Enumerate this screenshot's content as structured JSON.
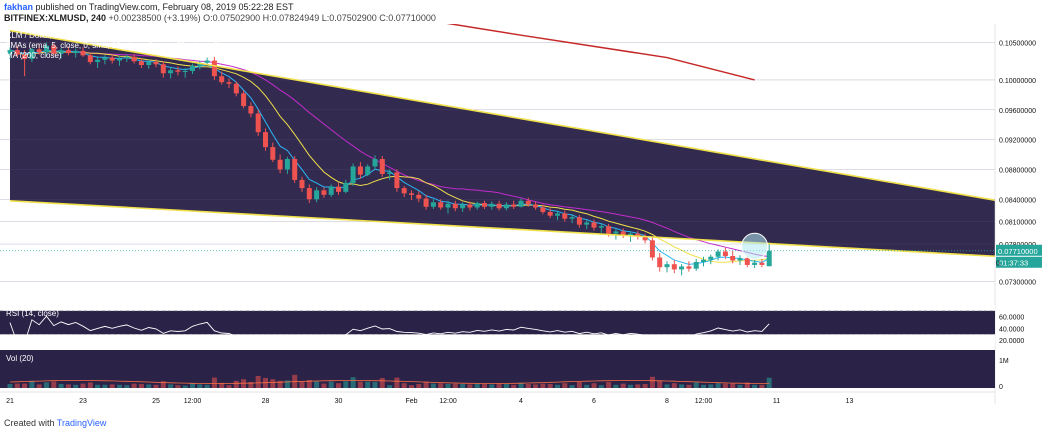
{
  "header": {
    "author": "fakhan",
    "published": "published on TradingView.com, February 08, 2019 05:22:28 EST",
    "symbol": "BITFINEX:XLMUSD, 240",
    "ohlc": "O:0.07502900  H:0.07824949  L:0.07502900  C:0.07710000",
    "change": "+0.00238500 (+3.19%)"
  },
  "overlay": {
    "symbol_line": "XLM / Dollar, 240, BITFINEX",
    "ma_line": "3MAs (ema, 5, close, 0, sma, 10, close, 0, sma, 21, close, 0)",
    "ma200_line": "MA (200, close)"
  },
  "rsi": {
    "label": "RSI (14, close)",
    "ticks": [
      "60.0000",
      "40.0000",
      "20.0000"
    ]
  },
  "vol": {
    "label": "Vol (20)",
    "ticks": [
      "1M",
      "0"
    ]
  },
  "footer": {
    "created": "Created with",
    "brand": "TradingView"
  },
  "colors": {
    "up": "#26a69a",
    "down": "#ef5350",
    "panel_bg": "#2b2248",
    "trendline": "#f0e04a",
    "ma200": "#c62828",
    "ma_sma21": "#c02ccc",
    "ma_sma10": "#f0e04a",
    "ma_ema5": "#29b6f6"
  },
  "chart_data": {
    "type": "candlestick",
    "symbol": "BITFINEX:XLMUSD",
    "timeframe": "240",
    "y_ticks": [
      "0.10500000",
      "0.10000000",
      "0.09600000",
      "0.09200000",
      "0.08800000",
      "0.08400000",
      "0.08100000",
      "0.07800000",
      "0.07300000"
    ],
    "y_tick_values": [
      0.105,
      0.1,
      0.096,
      0.092,
      0.088,
      0.084,
      0.081,
      0.078,
      0.073
    ],
    "ylim": [
      0.0705,
      0.1075
    ],
    "x_ticks": [
      "21",
      "23",
      "25",
      "12:00",
      "28",
      "30",
      "Feb",
      "12:00",
      "4",
      "6",
      "8",
      "12:00",
      "11",
      "13"
    ],
    "last_price_label": "0.07710000",
    "countdown_label": "01:37:33",
    "clipped_tick_label": "0.",
    "last_price": 0.0771,
    "candles": [
      [
        0.1035,
        0.1044,
        0.1028,
        0.104
      ],
      [
        0.104,
        0.1046,
        0.1031,
        0.1034
      ],
      [
        0.1034,
        0.104,
        0.1005,
        0.1028
      ],
      [
        0.1028,
        0.1043,
        0.1024,
        0.1041
      ],
      [
        0.1041,
        0.1048,
        0.1034,
        0.1037
      ],
      [
        0.1037,
        0.105,
        0.1032,
        0.1046
      ],
      [
        0.1046,
        0.1049,
        0.1033,
        0.1035
      ],
      [
        0.1035,
        0.1043,
        0.1029,
        0.104
      ],
      [
        0.104,
        0.1045,
        0.1033,
        0.1036
      ],
      [
        0.1036,
        0.1042,
        0.103,
        0.1039
      ],
      [
        0.1039,
        0.1044,
        0.1031,
        0.1033
      ],
      [
        0.1033,
        0.1036,
        0.1021,
        0.1024
      ],
      [
        0.1024,
        0.103,
        0.1016,
        0.1027
      ],
      [
        0.1027,
        0.1033,
        0.1021,
        0.103
      ],
      [
        0.103,
        0.1034,
        0.1022,
        0.1026
      ],
      [
        0.1026,
        0.1032,
        0.1019,
        0.1029
      ],
      [
        0.1029,
        0.1034,
        0.1024,
        0.1031
      ],
      [
        0.1031,
        0.1035,
        0.1022,
        0.1025
      ],
      [
        0.1025,
        0.1029,
        0.1016,
        0.102
      ],
      [
        0.102,
        0.1027,
        0.1015,
        0.1024
      ],
      [
        0.1024,
        0.1028,
        0.1017,
        0.1021
      ],
      [
        0.1021,
        0.1025,
        0.1003,
        0.1009
      ],
      [
        0.1009,
        0.1017,
        0.1002,
        0.1013
      ],
      [
        0.1013,
        0.1018,
        0.1006,
        0.1011
      ],
      [
        0.1011,
        0.1016,
        0.1003,
        0.1012
      ],
      [
        0.1012,
        0.1022,
        0.1008,
        0.1019
      ],
      [
        0.1019,
        0.1026,
        0.1014,
        0.1023
      ],
      [
        0.1023,
        0.103,
        0.1019,
        0.1026
      ],
      [
        0.1026,
        0.1031,
        0.1,
        0.1005
      ],
      [
        0.1005,
        0.1011,
        0.0994,
        0.0997
      ],
      [
        0.0997,
        0.1002,
        0.0989,
        0.0995
      ],
      [
        0.0995,
        0.0998,
        0.0978,
        0.0982
      ],
      [
        0.0982,
        0.0986,
        0.0962,
        0.0965
      ],
      [
        0.0965,
        0.097,
        0.095,
        0.0955
      ],
      [
        0.0955,
        0.096,
        0.0925,
        0.093
      ],
      [
        0.093,
        0.0935,
        0.0905,
        0.091
      ],
      [
        0.091,
        0.0916,
        0.089,
        0.0893
      ],
      [
        0.0893,
        0.09,
        0.0875,
        0.088
      ],
      [
        0.088,
        0.0897,
        0.0874,
        0.0894
      ],
      [
        0.0894,
        0.0898,
        0.0862,
        0.0866
      ],
      [
        0.0866,
        0.087,
        0.085,
        0.0855
      ],
      [
        0.0855,
        0.086,
        0.0835,
        0.084
      ],
      [
        0.084,
        0.0856,
        0.0836,
        0.0852
      ],
      [
        0.0852,
        0.0856,
        0.0842,
        0.0846
      ],
      [
        0.0846,
        0.086,
        0.0843,
        0.0857
      ],
      [
        0.0857,
        0.0862,
        0.0846,
        0.085
      ],
      [
        0.085,
        0.0866,
        0.0848,
        0.0862
      ],
      [
        0.0862,
        0.0888,
        0.0858,
        0.0884
      ],
      [
        0.0884,
        0.089,
        0.0868,
        0.0873
      ],
      [
        0.0873,
        0.0887,
        0.0871,
        0.0884
      ],
      [
        0.0884,
        0.0899,
        0.088,
        0.0894
      ],
      [
        0.0894,
        0.0898,
        0.087,
        0.0874
      ],
      [
        0.0874,
        0.088,
        0.0866,
        0.0876
      ],
      [
        0.0876,
        0.088,
        0.085,
        0.0855
      ],
      [
        0.0855,
        0.0858,
        0.0843,
        0.0848
      ],
      [
        0.0848,
        0.0852,
        0.0839,
        0.0846
      ],
      [
        0.0846,
        0.0851,
        0.0836,
        0.0841
      ],
      [
        0.0841,
        0.0846,
        0.0826,
        0.083
      ],
      [
        0.083,
        0.084,
        0.0827,
        0.0836
      ],
      [
        0.0836,
        0.084,
        0.0826,
        0.0829
      ],
      [
        0.0829,
        0.0838,
        0.0821,
        0.0834
      ],
      [
        0.0834,
        0.0838,
        0.0824,
        0.0828
      ],
      [
        0.0828,
        0.0836,
        0.0823,
        0.0833
      ],
      [
        0.0833,
        0.0837,
        0.0825,
        0.0829
      ],
      [
        0.0829,
        0.0837,
        0.0826,
        0.0835
      ],
      [
        0.0835,
        0.0838,
        0.0827,
        0.083
      ],
      [
        0.083,
        0.0837,
        0.0826,
        0.0834
      ],
      [
        0.0834,
        0.0838,
        0.0825,
        0.0828
      ],
      [
        0.0828,
        0.0836,
        0.0825,
        0.0833
      ],
      [
        0.0833,
        0.0838,
        0.0827,
        0.083
      ],
      [
        0.083,
        0.0841,
        0.0829,
        0.0838
      ],
      [
        0.0838,
        0.0842,
        0.083,
        0.0833
      ],
      [
        0.0833,
        0.0837,
        0.0826,
        0.0829
      ],
      [
        0.0829,
        0.0833,
        0.082,
        0.0823
      ],
      [
        0.0823,
        0.0828,
        0.0815,
        0.0818
      ],
      [
        0.0818,
        0.0824,
        0.0812,
        0.0821
      ],
      [
        0.0821,
        0.0825,
        0.081,
        0.0814
      ],
      [
        0.0814,
        0.082,
        0.0808,
        0.0816
      ],
      [
        0.0816,
        0.0819,
        0.0802,
        0.0806
      ],
      [
        0.0806,
        0.0812,
        0.08,
        0.0809
      ],
      [
        0.0809,
        0.0813,
        0.0798,
        0.0802
      ],
      [
        0.0802,
        0.0808,
        0.0795,
        0.0804
      ],
      [
        0.0804,
        0.0807,
        0.079,
        0.0794
      ],
      [
        0.0794,
        0.08,
        0.0786,
        0.0797
      ],
      [
        0.0797,
        0.0801,
        0.0788,
        0.0791
      ],
      [
        0.0791,
        0.0797,
        0.0783,
        0.0794
      ],
      [
        0.0794,
        0.0798,
        0.0786,
        0.079
      ],
      [
        0.079,
        0.0794,
        0.0781,
        0.0785
      ],
      [
        0.0785,
        0.079,
        0.0758,
        0.0762
      ],
      [
        0.0762,
        0.0768,
        0.0743,
        0.0749
      ],
      [
        0.0749,
        0.0757,
        0.0742,
        0.0753
      ],
      [
        0.0753,
        0.0759,
        0.0741,
        0.0746
      ],
      [
        0.0746,
        0.0753,
        0.0738,
        0.075
      ],
      [
        0.075,
        0.0757,
        0.0743,
        0.0747
      ],
      [
        0.0747,
        0.076,
        0.0744,
        0.0756
      ],
      [
        0.0756,
        0.0763,
        0.075,
        0.0759
      ],
      [
        0.0759,
        0.0766,
        0.0753,
        0.0763
      ],
      [
        0.0763,
        0.0773,
        0.0758,
        0.077
      ],
      [
        0.077,
        0.0775,
        0.076,
        0.0764
      ],
      [
        0.0764,
        0.0771,
        0.0754,
        0.0758
      ],
      [
        0.0758,
        0.0765,
        0.0752,
        0.0761
      ],
      [
        0.0761,
        0.0764,
        0.0749,
        0.0752
      ],
      [
        0.0752,
        0.0759,
        0.0748,
        0.0755
      ],
      [
        0.0755,
        0.076,
        0.0749,
        0.0752
      ],
      [
        0.07503,
        0.07825,
        0.07503,
        0.0771
      ]
    ],
    "trendlines": [
      {
        "start": [
          0,
          0.1066
        ],
        "end": [
          136,
          0.0837
        ]
      },
      {
        "start": [
          0,
          0.0838
        ],
        "end": [
          136,
          0.0763
        ]
      }
    ],
    "ma200": [
      [
        56,
        0.1082
      ],
      [
        70,
        0.106
      ],
      [
        90,
        0.103
      ],
      [
        102,
        0.1
      ]
    ],
    "highlight_circle": {
      "at": [
        102,
        0.0777
      ]
    },
    "x_tick_bars": [
      0,
      10,
      20,
      25,
      35,
      45,
      55,
      60,
      70,
      80,
      90,
      95,
      105,
      115
    ]
  }
}
